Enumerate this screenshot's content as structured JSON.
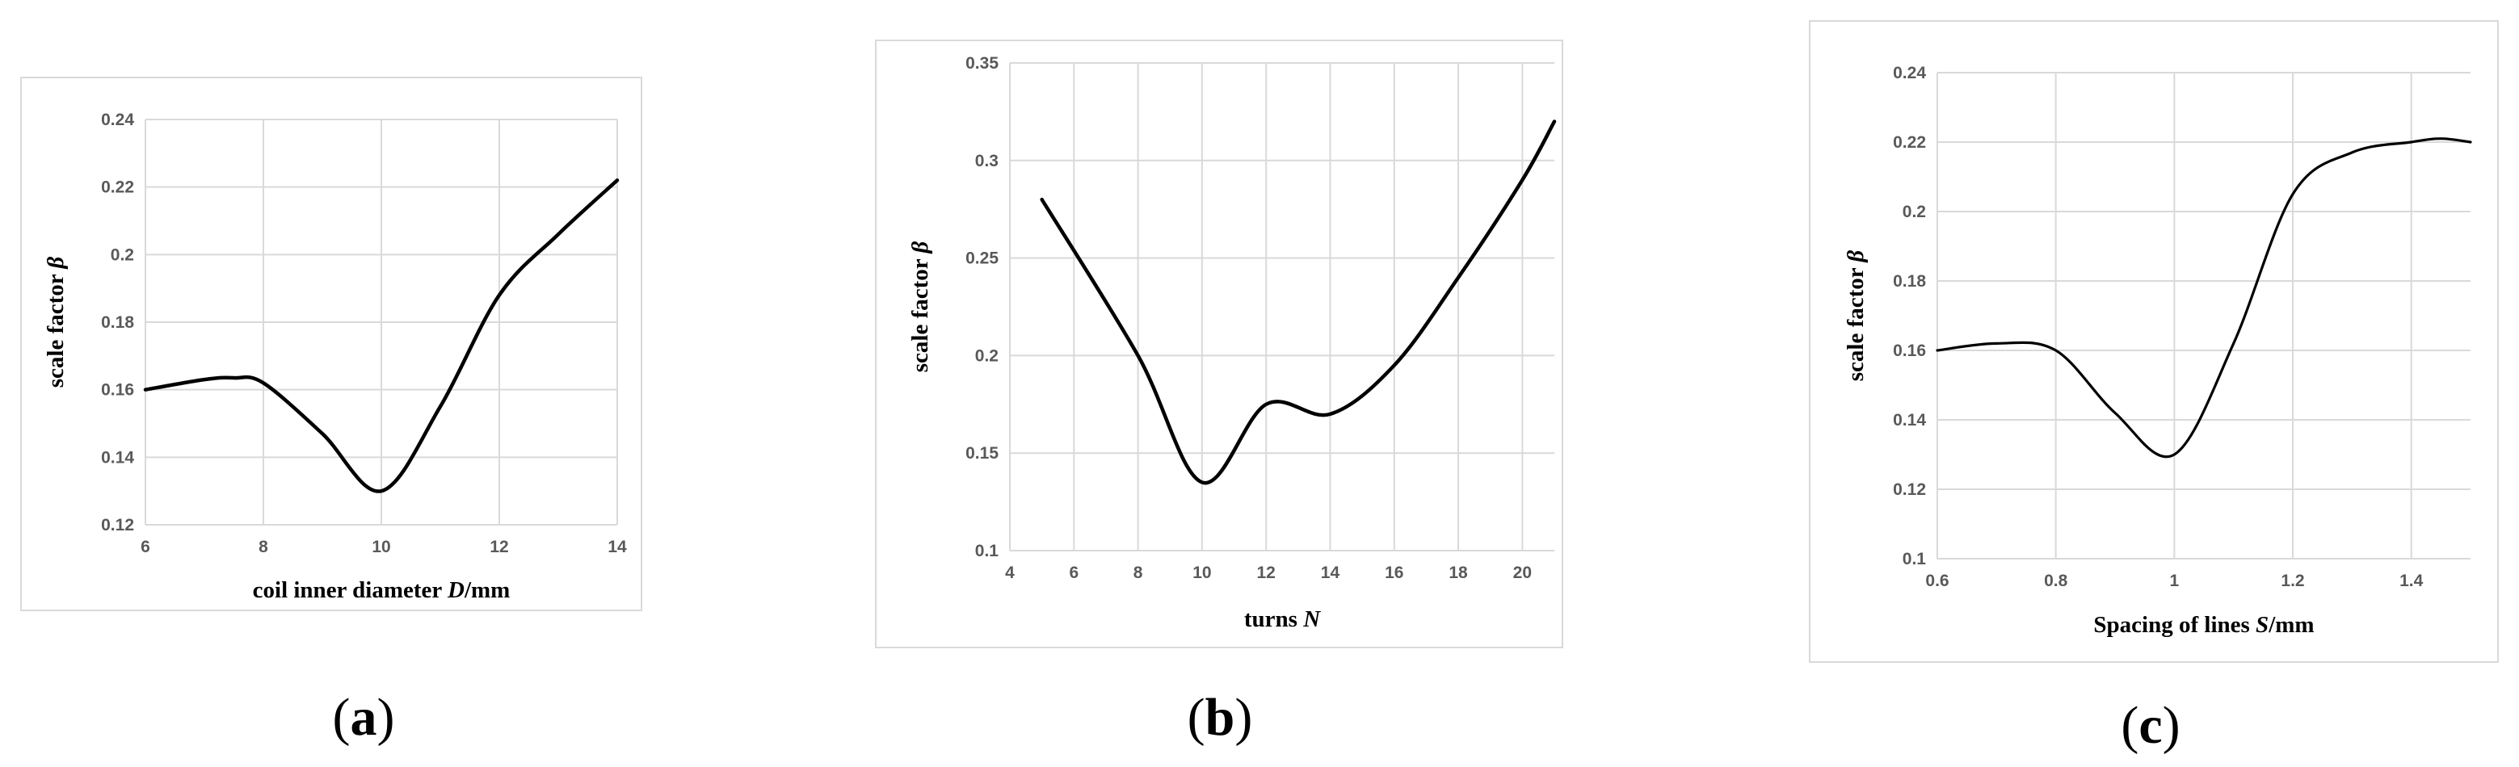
{
  "chart_data": [
    {
      "panel_label": "a",
      "type": "line",
      "title": "",
      "xlabel": "coil inner diameter ",
      "xlabel_var": "D",
      "xlabel_unit": "/mm",
      "ylabel": "scale factor ",
      "ylabel_var": "β",
      "xlim": [
        6,
        14
      ],
      "ylim": [
        0.12,
        0.24
      ],
      "x_ticks": [
        "6",
        "8",
        "10",
        "12",
        "14"
      ],
      "y_ticks": [
        "0.12",
        "0.14",
        "0.16",
        "0.18",
        "0.2",
        "0.22",
        "0.24"
      ],
      "grid": true,
      "series": [
        {
          "x": [
            6,
            7,
            7.5,
            8,
            9,
            10,
            11,
            12,
            13,
            14
          ],
          "y": [
            0.16,
            0.163,
            0.1635,
            0.162,
            0.147,
            0.13,
            0.155,
            0.188,
            0.206,
            0.222
          ]
        }
      ]
    },
    {
      "panel_label": "b",
      "type": "line",
      "title": "",
      "xlabel": "turns ",
      "xlabel_var": "N",
      "xlabel_unit": "",
      "ylabel": "scale factor ",
      "ylabel_var": "β",
      "xlim": [
        4,
        21
      ],
      "ylim": [
        0.1,
        0.35
      ],
      "x_ticks": [
        "4",
        "6",
        "8",
        "10",
        "12",
        "14",
        "16",
        "18",
        "20"
      ],
      "y_ticks": [
        "0.1",
        "0.15",
        "0.2",
        "0.25",
        "0.3",
        "0.35"
      ],
      "grid": true,
      "series": [
        {
          "x": [
            5,
            8,
            10,
            12,
            14,
            16,
            18,
            20,
            21
          ],
          "y": [
            0.28,
            0.2,
            0.135,
            0.175,
            0.17,
            0.195,
            0.24,
            0.29,
            0.32
          ]
        }
      ]
    },
    {
      "panel_label": "c",
      "type": "line",
      "title": "",
      "xlabel": "Spacing of lines ",
      "xlabel_var": "S",
      "xlabel_unit": "/mm",
      "ylabel": "scale factor ",
      "ylabel_var": "β",
      "xlim": [
        0.6,
        1.5
      ],
      "ylim": [
        0.1,
        0.24
      ],
      "x_ticks": [
        "0.6",
        "0.8",
        "1",
        "1.2",
        "1.4"
      ],
      "y_ticks": [
        "0.1",
        "0.12",
        "0.14",
        "0.16",
        "0.18",
        "0.2",
        "0.22",
        "0.24"
      ],
      "grid": true,
      "series": [
        {
          "x": [
            0.6,
            0.7,
            0.8,
            0.9,
            1.0,
            1.1,
            1.2,
            1.3,
            1.4,
            1.45,
            1.5
          ],
          "y": [
            0.16,
            0.162,
            0.16,
            0.142,
            0.13,
            0.162,
            0.205,
            0.217,
            0.22,
            0.221,
            0.22
          ]
        }
      ]
    }
  ]
}
